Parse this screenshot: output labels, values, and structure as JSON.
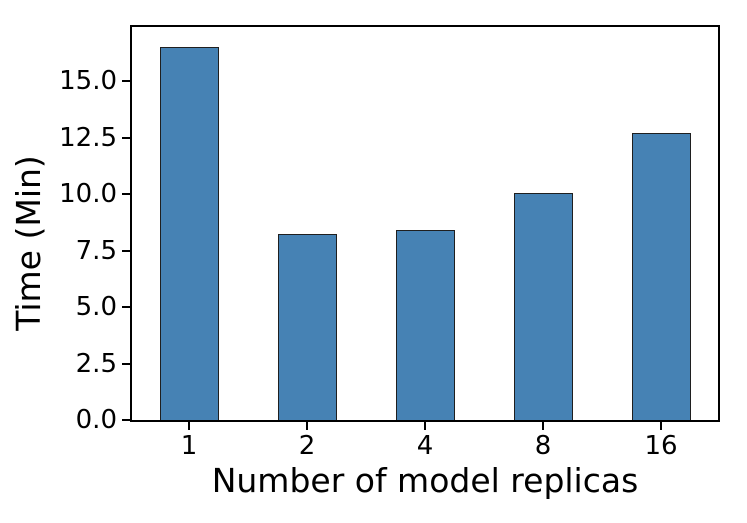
{
  "figure": {
    "background": "#ffffff",
    "spine_color": "#000000"
  },
  "chart_data": {
    "type": "bar",
    "categories": [
      "1",
      "2",
      "4",
      "8",
      "16"
    ],
    "values": [
      16.5,
      8.25,
      8.4,
      10.05,
      12.7
    ],
    "title": "",
    "xlabel": "Number of model replicas",
    "ylabel": "Time (Min)",
    "yticks": [
      0,
      2.5,
      5,
      7.5,
      10,
      12.5,
      15
    ],
    "ytick_labels": [
      "0.0",
      "2.5",
      "5.0",
      "7.5",
      "10.0",
      "12.5",
      "15.0"
    ],
    "ylim": [
      0,
      17.4
    ],
    "bar_color": "#4682b4",
    "bar_edge_color": "#1f1f1f",
    "bar_width_fraction": 0.5,
    "grid": false,
    "legend_position": "none"
  }
}
